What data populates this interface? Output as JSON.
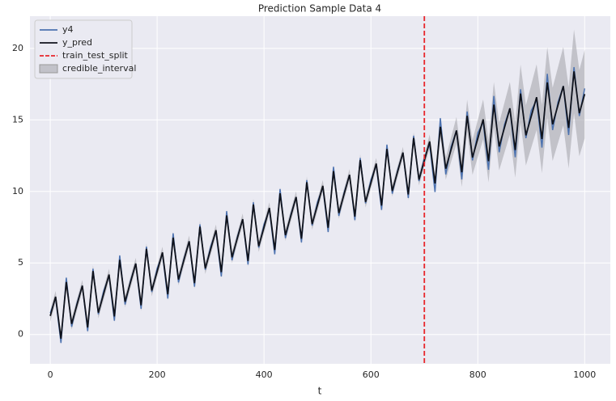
{
  "chart_data": {
    "type": "line",
    "title": "Prediction Sample Data 4",
    "xlabel": "t",
    "x": [
      0,
      10,
      20,
      30,
      40,
      50,
      60,
      70,
      80,
      90,
      100,
      110,
      120,
      130,
      140,
      150,
      160,
      170,
      180,
      190,
      200,
      210,
      220,
      230,
      240,
      250,
      260,
      270,
      280,
      290,
      300,
      310,
      320,
      330,
      340,
      350,
      360,
      370,
      380,
      390,
      400,
      410,
      420,
      430,
      440,
      450,
      460,
      470,
      480,
      490,
      500,
      510,
      520,
      530,
      540,
      550,
      560,
      570,
      580,
      590,
      600,
      610,
      620,
      630,
      640,
      650,
      660,
      670,
      680,
      690,
      700,
      710,
      720,
      730,
      740,
      750,
      760,
      770,
      780,
      790,
      800,
      810,
      820,
      830,
      840,
      850,
      860,
      870,
      880,
      890,
      900,
      910,
      920,
      930,
      940,
      950,
      960,
      970,
      980,
      990,
      1000
    ],
    "series": [
      {
        "name": "y4",
        "color": "#4c72b0",
        "values": [
          1.5,
          2.54,
          -0.59,
          3.97,
          0.54,
          2.18,
          3.41,
          0.24,
          4.59,
          1.42,
          3.05,
          4.09,
          0.96,
          5.52,
          2.09,
          3.73,
          4.96,
          1.79,
          6.14,
          2.97,
          4.6,
          5.64,
          2.51,
          7.07,
          3.64,
          5.28,
          6.51,
          3.34,
          7.69,
          4.52,
          6.15,
          7.19,
          4.06,
          8.62,
          5.19,
          6.83,
          8.06,
          4.89,
          9.24,
          6.07,
          7.7,
          8.74,
          5.61,
          10.17,
          6.74,
          8.38,
          9.61,
          6.44,
          10.79,
          7.62,
          9.25,
          10.29,
          7.16,
          11.72,
          8.29,
          9.93,
          11.16,
          7.99,
          12.34,
          9.17,
          10.8,
          11.84,
          8.71,
          13.27,
          9.84,
          11.48,
          12.71,
          9.54,
          13.89,
          10.72,
          12.35,
          13.29,
          9.96,
          15.12,
          11.19,
          13.13,
          14.26,
          10.84,
          15.59,
          12.17,
          14.1,
          14.84,
          11.51,
          16.67,
          12.74,
          14.68,
          15.81,
          12.39,
          17.14,
          13.72,
          15.65,
          16.39,
          13.06,
          18.22,
          14.29,
          16.23,
          17.36,
          13.94,
          18.69,
          15.27,
          17.2
        ]
      },
      {
        "name": "y_pred",
        "color": "#10131c",
        "values": [
          1.3,
          2.64,
          -0.29,
          3.67,
          0.74,
          2.08,
          3.41,
          0.49,
          4.44,
          1.52,
          2.85,
          4.19,
          1.26,
          5.22,
          2.29,
          3.63,
          4.96,
          2.04,
          5.99,
          3.07,
          4.4,
          5.74,
          2.81,
          6.77,
          3.84,
          5.18,
          6.51,
          3.59,
          7.54,
          4.62,
          5.95,
          7.29,
          4.36,
          8.32,
          5.39,
          6.73,
          8.06,
          5.14,
          9.09,
          6.17,
          7.5,
          8.84,
          5.91,
          9.87,
          6.94,
          8.28,
          9.61,
          6.69,
          10.64,
          7.72,
          9.05,
          10.39,
          7.46,
          11.42,
          8.49,
          9.83,
          11.16,
          8.24,
          12.19,
          9.27,
          10.6,
          11.94,
          9.01,
          12.97,
          10.04,
          11.38,
          12.71,
          9.79,
          13.74,
          10.82,
          12.15,
          13.49,
          10.56,
          14.52,
          11.59,
          12.93,
          14.26,
          11.34,
          15.29,
          12.37,
          13.7,
          15.04,
          12.11,
          16.07,
          13.14,
          14.48,
          15.81,
          12.89,
          16.84,
          13.92,
          15.25,
          16.59,
          13.66,
          17.62,
          14.69,
          16.03,
          17.36,
          14.44,
          18.39,
          15.47,
          16.8
        ]
      }
    ],
    "vlines": [
      {
        "name": "train_test_split",
        "x": 700,
        "color": "#e8262b"
      }
    ],
    "band": {
      "name": "credible_interval",
      "color": "#a0a0a8",
      "lower": [
        0.9,
        2.24,
        -0.69,
        3.27,
        0.34,
        1.68,
        3.01,
        0.09,
        4.04,
        1.12,
        2.45,
        3.79,
        0.86,
        4.82,
        1.89,
        3.23,
        4.56,
        1.64,
        5.59,
        2.67,
        4.0,
        5.34,
        2.41,
        6.37,
        3.44,
        4.78,
        6.11,
        3.19,
        7.14,
        4.22,
        5.55,
        6.89,
        3.96,
        7.92,
        4.99,
        6.33,
        7.66,
        4.74,
        8.69,
        5.77,
        7.1,
        8.44,
        5.51,
        9.47,
        6.54,
        7.88,
        9.21,
        6.29,
        10.24,
        7.32,
        8.65,
        9.99,
        7.06,
        11.02,
        8.09,
        9.43,
        10.76,
        7.84,
        11.79,
        8.87,
        10.2,
        11.54,
        8.61,
        12.57,
        9.64,
        10.98,
        12.31,
        9.39,
        13.34,
        10.42,
        11.75,
        13.0,
        9.98,
        13.85,
        10.83,
        12.08,
        13.32,
        10.31,
        14.17,
        11.16,
        12.4,
        13.65,
        10.63,
        14.5,
        11.48,
        12.73,
        13.97,
        10.96,
        14.82,
        11.81,
        13.05,
        14.3,
        11.28,
        15.15,
        12.13,
        13.38,
        14.62,
        11.61,
        15.47,
        12.46,
        13.7
      ],
      "upper": [
        1.7,
        3.04,
        0.11,
        4.07,
        1.14,
        2.48,
        3.81,
        0.89,
        4.84,
        1.92,
        3.25,
        4.59,
        1.66,
        5.62,
        2.69,
        4.03,
        5.36,
        2.44,
        6.39,
        3.47,
        4.8,
        6.14,
        3.21,
        7.17,
        4.24,
        5.58,
        6.91,
        3.99,
        7.94,
        5.02,
        6.35,
        7.69,
        4.76,
        8.72,
        5.79,
        7.13,
        8.46,
        5.54,
        9.49,
        6.57,
        7.9,
        9.24,
        6.31,
        10.27,
        7.34,
        8.68,
        10.01,
        7.09,
        11.04,
        8.12,
        9.45,
        10.79,
        7.86,
        11.82,
        8.89,
        10.23,
        11.56,
        8.64,
        12.59,
        9.67,
        11.0,
        12.34,
        9.41,
        13.37,
        10.44,
        11.78,
        13.11,
        10.19,
        14.14,
        11.22,
        12.55,
        13.98,
        11.14,
        15.19,
        12.35,
        13.78,
        15.2,
        12.37,
        16.41,
        13.58,
        15.0,
        16.43,
        13.59,
        17.64,
        14.8,
        16.23,
        17.65,
        14.82,
        18.86,
        16.03,
        17.45,
        18.88,
        16.04,
        20.09,
        17.25,
        18.68,
        20.1,
        17.27,
        21.31,
        18.48,
        19.9
      ]
    },
    "xlim": [
      -38,
      1048
    ],
    "ylim": [
      -2.05,
      22.25
    ],
    "xticks": [
      0,
      200,
      400,
      600,
      800,
      1000
    ],
    "yticks": [
      0,
      5,
      10,
      15,
      20
    ],
    "grid": true,
    "legend": "upper left"
  }
}
